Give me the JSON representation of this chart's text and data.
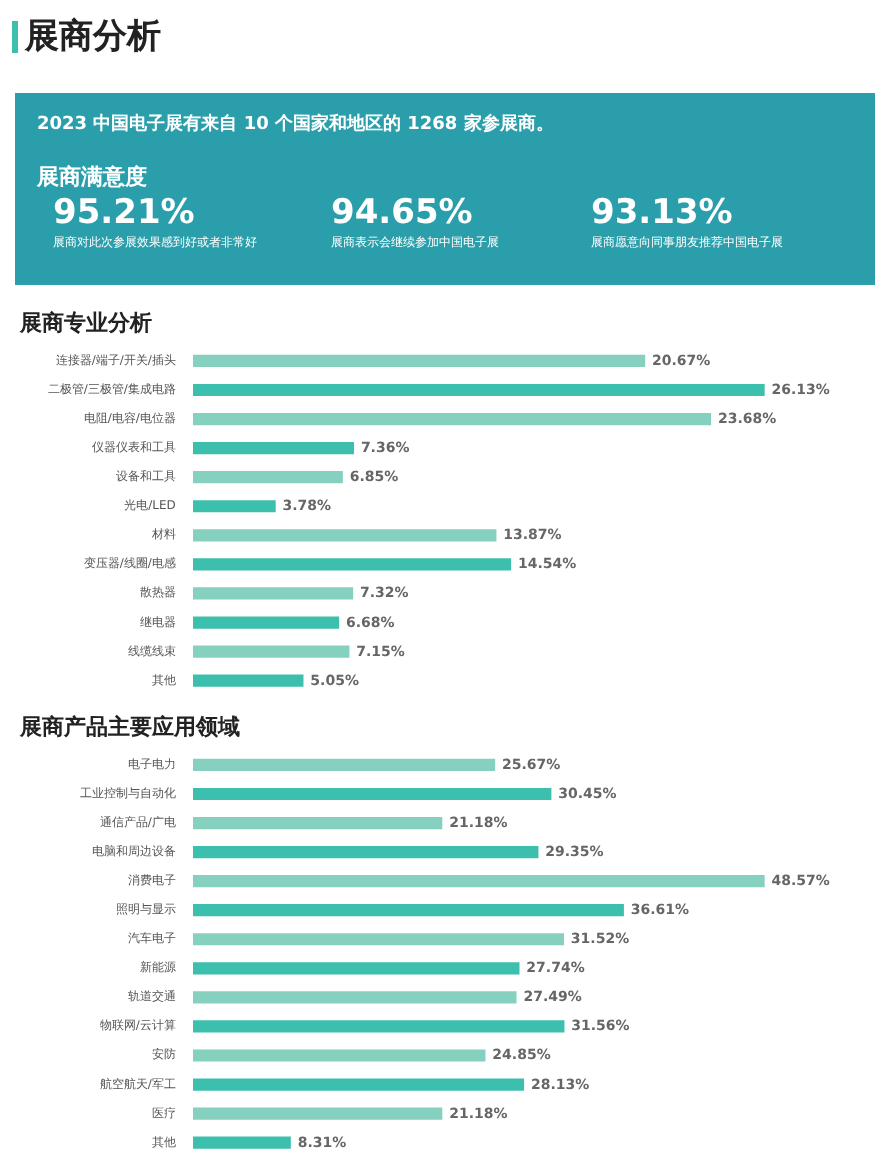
{
  "chart_data": [
    {
      "type": "other",
      "title": "展商分析",
      "subtitle": "2023 中国电子展有来自 10 个国家和地区的 1268 家参展商。",
      "annotations": [
        "展商满意度",
        "95.21%",
        "展商对此次参展效果感到好或者非常好",
        "94.65%",
        "展商表示会继续参加中国电子展",
        "93.13%",
        "展商愿意向同事朋友推荐中国电子展"
      ]
    },
    {
      "type": "bar",
      "orientation": "horizontal",
      "title": "展商专业分析",
      "categories": [
        "连接器/端子/开关/插头",
        "二极管/三极管/集成电路",
        "电阻/电容/电位器",
        "仪器仪表和工具",
        "设备和工具",
        "光电/LED",
        "材料",
        "变压器/线圈/电感",
        "散热器",
        "继电器",
        "线缆线束",
        "其他"
      ],
      "values": [
        20.67,
        26.13,
        23.68,
        7.36,
        6.85,
        3.78,
        13.87,
        14.54,
        7.32,
        6.68,
        7.15,
        5.05
      ],
      "value_labels": [
        "20.67%",
        "26.13%",
        "23.68%",
        "7.36%",
        "6.85%",
        "3.78%",
        "13.87%",
        "14.54%",
        "7.32%",
        "6.68%",
        "7.15%",
        "5.05%"
      ],
      "colors": [
        "#86d0c0",
        "#3dbfad",
        "#86d0c0",
        "#3dbfad",
        "#86d0c0",
        "#3dbfad",
        "#86d0c0",
        "#3dbfad",
        "#86d0c0",
        "#3dbfad",
        "#86d0c0",
        "#3dbfad"
      ],
      "grid": false
    },
    {
      "type": "bar",
      "orientation": "horizontal",
      "title": "展商产品主要应用领域",
      "categories": [
        "电子电力",
        "工业控制与自动化",
        "通信产品/广电",
        "电脑和周边设备",
        "消费电子",
        "照明与显示",
        "汽车电子",
        "新能源",
        "轨道交通",
        "物联网/云计算",
        "安防",
        "航空航天/军工",
        "医疗",
        "其他"
      ],
      "values": [
        25.67,
        30.45,
        21.18,
        29.35,
        48.57,
        36.61,
        31.52,
        27.74,
        27.49,
        31.56,
        24.85,
        28.13,
        21.18,
        8.31
      ],
      "value_labels": [
        "25.67%",
        "30.45%",
        "21.18%",
        "29.35%",
        "48.57%",
        "36.61%",
        "31.52%",
        "27.74%",
        "27.49%",
        "31.56%",
        "24.85%",
        "28.13%",
        "21.18%",
        "8.31%"
      ],
      "colors": [
        "#86d0c0",
        "#3dbfad",
        "#86d0c0",
        "#3dbfad",
        "#86d0c0",
        "#3dbfad",
        "#86d0c0",
        "#3dbfad",
        "#86d0c0",
        "#3dbfad",
        "#86d0c0",
        "#3dbfad",
        "#86d0c0",
        "#3dbfad"
      ],
      "grid": false
    }
  ]
}
